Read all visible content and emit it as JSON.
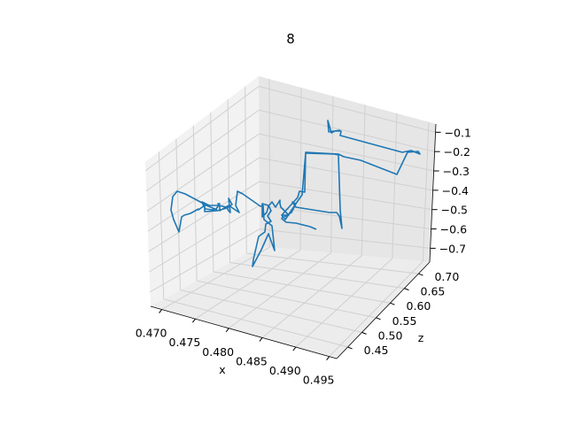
{
  "chart_data": {
    "type": "line",
    "title": "8",
    "xlabel": "x",
    "ylabel": "z",
    "zlabel": "",
    "grid": true,
    "x_ticks": [
      "0.470",
      "0.475",
      "0.480",
      "0.485",
      "0.490",
      "0.495"
    ],
    "y_ticks": [
      "0.45",
      "0.50",
      "0.55",
      "0.60",
      "0.65",
      "0.70"
    ],
    "z_ticks": [
      "−0.7",
      "−0.6",
      "−0.5",
      "−0.4",
      "−0.3",
      "−0.2",
      "−0.1"
    ],
    "series_color": "#1f77b4",
    "series": [
      {
        "points_screen_path": [
          [
            357,
            259
          ],
          [
            350,
            256
          ],
          [
            334,
            252
          ],
          [
            323,
            251
          ],
          [
            318,
            247
          ],
          [
            320,
            243
          ],
          [
            326,
            243
          ],
          [
            317,
            234
          ],
          [
            316,
            230
          ],
          [
            316,
            226
          ],
          [
            311,
            234
          ],
          [
            307,
            228
          ],
          [
            303,
            233
          ],
          [
            301,
            240
          ],
          [
            296,
            245
          ],
          [
            296,
            230
          ],
          [
            303,
            232
          ],
          [
            306,
            238
          ],
          [
            302,
            244
          ],
          [
            306,
            250
          ],
          [
            300,
            253
          ],
          [
            299,
            262
          ],
          [
            292,
            267
          ],
          [
            286,
            293
          ],
          [
            285,
            301
          ],
          [
            295,
            282
          ],
          [
            303,
            264
          ],
          [
            310,
            283
          ],
          [
            307,
            255
          ],
          [
            298,
            248
          ],
          [
            297,
            232
          ],
          [
            294,
            233
          ],
          [
            274,
            219
          ],
          [
            268,
            216
          ],
          [
            266,
            232
          ],
          [
            270,
            240
          ],
          [
            258,
            232
          ],
          [
            248,
            238
          ],
          [
            248,
            232
          ],
          [
            246,
            230
          ],
          [
            248,
            230
          ],
          [
            244,
            236
          ],
          [
            240,
            237
          ],
          [
            232,
            236
          ],
          [
            230,
            233
          ],
          [
            228,
            228
          ],
          [
            236,
            232
          ],
          [
            247,
            232
          ],
          [
            256,
            234
          ],
          [
            258,
            238
          ],
          [
            260,
            240
          ],
          [
            258,
            224
          ],
          [
            262,
            231
          ],
          [
            256,
            235
          ],
          [
            245,
            238
          ],
          [
            231,
            239
          ],
          [
            231,
            232
          ],
          [
            224,
            237
          ],
          [
            224,
            236
          ],
          [
            215,
            241
          ],
          [
            208,
            243
          ],
          [
            205,
            245
          ],
          [
            202,
            262
          ],
          [
            196,
            248
          ],
          [
            193,
            237
          ],
          [
            195,
            222
          ],
          [
            200,
            216
          ],
          [
            209,
            219
          ],
          [
            226,
            228
          ],
          [
            233,
            232
          ],
          [
            245,
            237
          ]
        ],
        "upper_path": [
          [
            321,
            245
          ],
          [
            329,
            240
          ],
          [
            334,
            230
          ],
          [
            341,
            220
          ],
          [
            345,
            173
          ],
          [
            377,
            174
          ],
          [
            382,
            175
          ],
          [
            384,
            237
          ],
          [
            386,
            258
          ],
          [
            383,
            244
          ],
          [
            380,
            240
          ],
          [
            372,
            240
          ],
          [
            334,
            234
          ],
          [
            330,
            228
          ],
          [
            331,
            229
          ],
          [
            334,
            230
          ],
          [
            322,
            248
          ],
          [
            318,
            243
          ],
          [
            336,
            223
          ],
          [
            338,
            216
          ],
          [
            344,
            217
          ],
          [
            345,
            172
          ],
          [
            382,
            174
          ],
          [
            388,
            177
          ],
          [
            407,
            181
          ],
          [
            448,
            197
          ],
          [
            460,
            172
          ],
          [
            472,
            171
          ],
          [
            474,
            174
          ],
          [
            464,
            170
          ],
          [
            454,
            172
          ],
          [
            384,
            153
          ],
          [
            385,
            148
          ],
          [
            378,
            148
          ],
          [
            374,
            150
          ],
          [
            370,
            136
          ],
          [
            371,
            149
          ],
          [
            384,
            147
          ]
        ]
      }
    ]
  }
}
